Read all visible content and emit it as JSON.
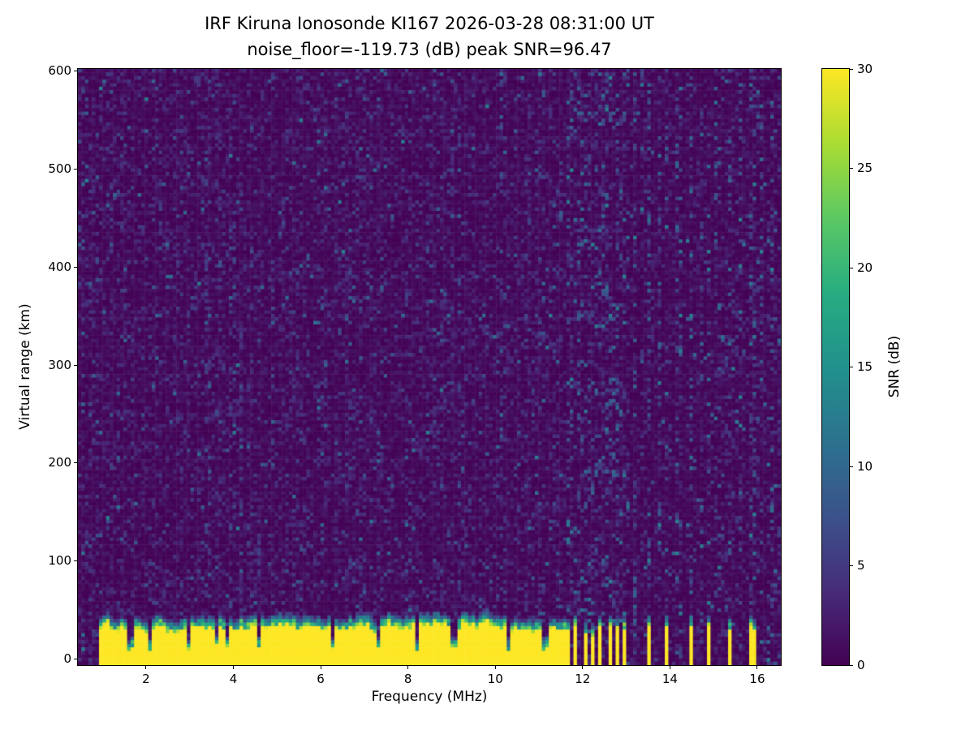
{
  "chart_data": {
    "type": "heatmap",
    "title": "IRF Kiruna Ionosonde KI167 2026-03-28 08:31:00  UT",
    "subtitle": "noise_floor=-119.73 (dB) peak SNR=96.47",
    "station": "IRF Kiruna Ionosonde KI167",
    "timestamp_ut": "2026-03-28 08:31:00",
    "noise_floor_db": -119.73,
    "peak_snr_db": 96.47,
    "xlabel": "Frequency (MHz)",
    "ylabel": "Virtual range (km)",
    "xlim": [
      0.44,
      16.54
    ],
    "ylim": [
      -6,
      602
    ],
    "x_ticks": [
      2,
      4,
      6,
      8,
      10,
      12,
      14,
      16
    ],
    "y_ticks": [
      0,
      100,
      200,
      300,
      400,
      500,
      600
    ],
    "colorbar": {
      "label": "SNR (dB)",
      "min": 0,
      "max": 30,
      "ticks": [
        0,
        5,
        10,
        15,
        20,
        25,
        30
      ],
      "colormap": "viridis"
    },
    "viridis_stops": [
      "#440154",
      "#472c7a",
      "#3b528b",
      "#2c728e",
      "#21918c",
      "#27ad81",
      "#5cc863",
      "#aadc32",
      "#fde725"
    ],
    "features": {
      "background_noise_mean_db": 1.1,
      "ground_echo_band": {
        "freq_start_mhz": 0.9,
        "freq_end_mhz": 11.64,
        "range_top_km_mean": 32,
        "range_top_km_spread": 10,
        "transition_width_km": 14,
        "snr_db": 30
      },
      "comb_region": {
        "freq_start_mhz": 11.64,
        "freq_end_mhz": 13.06,
        "period_mhz": 0.14,
        "duty": 0.5
      },
      "isolated_lines_mhz": [
        13.5,
        13.95,
        14.5,
        14.9,
        15.35,
        15.9
      ],
      "ghost_lines_mhz": [
        13.2,
        13.5,
        13.75,
        13.95,
        14.2,
        14.5,
        14.7,
        14.9,
        15.1,
        15.35,
        15.6,
        15.9,
        16.1,
        16.35
      ],
      "band_notches_mhz": [
        1.65,
        2.1,
        2.95,
        3.6,
        3.85,
        4.6,
        6.3,
        7.35,
        8.2,
        9.05,
        10.3,
        11.15
      ]
    }
  }
}
